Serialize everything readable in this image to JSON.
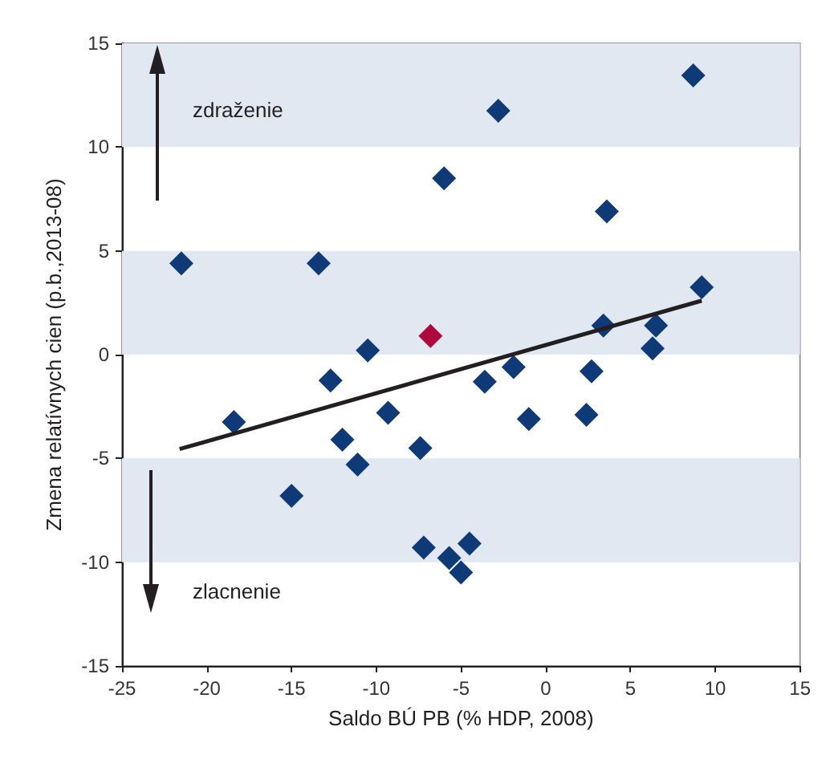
{
  "chart_data": {
    "type": "scatter",
    "xlabel": "Saldo BÚ PB (% HDP, 2008)",
    "ylabel": "Zmena relatívnych cien (p.b.,2013-08)",
    "annotations": [
      "zdraženie",
      "zlacnenie"
    ],
    "xlim": [
      -25,
      15
    ],
    "xticks": [
      -25,
      -20,
      -15,
      -10,
      -5,
      0,
      5,
      10,
      15
    ],
    "ylim": [
      -15,
      15
    ],
    "yticks": [
      -15,
      -10,
      -5,
      0,
      5,
      10,
      15
    ],
    "grid": false,
    "marker": "diamond",
    "bands": [
      {
        "axis": "y",
        "from": 10,
        "to": 15,
        "color": "#e1e8f2"
      },
      {
        "axis": "y",
        "from": 0,
        "to": 5,
        "color": "#e1e8f2"
      },
      {
        "axis": "y",
        "from": -10,
        "to": -5,
        "color": "#e1e8f2"
      }
    ],
    "series": [
      {
        "color": "#0f3a78",
        "x": [
          -21.5,
          -13.4,
          -6.0,
          -2.8,
          3.6,
          8.7,
          9.2,
          3.4,
          6.5,
          6.3,
          -10.5,
          -12.7,
          -18.4,
          -9.3,
          -12.0,
          -11.1,
          -15.0,
          -7.4,
          -3.6,
          -1.9,
          -1.0,
          2.7,
          2.4,
          -7.2,
          -5.7,
          -5.0,
          -4.5
        ],
        "values": [
          4.4,
          4.4,
          8.5,
          11.75,
          6.9,
          13.45,
          3.25,
          1.4,
          1.4,
          0.3,
          0.2,
          -1.25,
          -3.25,
          -2.8,
          -4.1,
          -5.3,
          -6.8,
          -4.5,
          -1.3,
          -0.6,
          -3.1,
          -0.8,
          -2.9,
          -9.3,
          -9.8,
          -10.5,
          -9.1
        ]
      },
      {
        "color": "#b0083e",
        "x": [
          -6.8
        ],
        "values": [
          0.9
        ]
      },
      {
        "type": "line",
        "marker": "none",
        "color": "#231f20",
        "x": [
          -21.6,
          9.2
        ],
        "values": [
          -4.55,
          2.6
        ]
      }
    ]
  }
}
